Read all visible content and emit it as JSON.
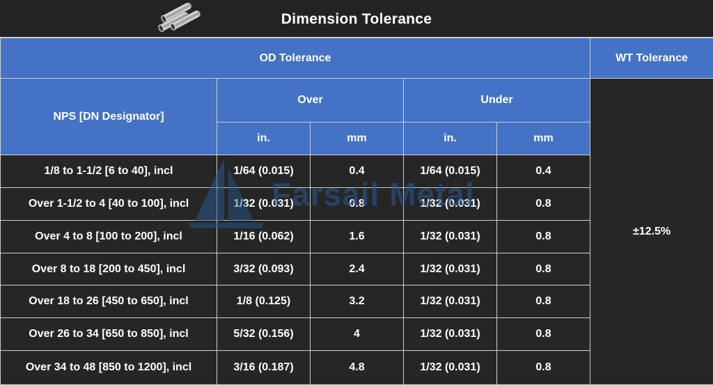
{
  "title": "Dimension Tolerance",
  "logo_icon": "steel-pipes-icon",
  "watermark": {
    "icon": "sail-logo-icon",
    "text": "Farsail Metal"
  },
  "header": {
    "od_tolerance": "OD Tolerance",
    "wt_tolerance": "WT Tolerance",
    "nps": "NPS [DN Designator]",
    "over": "Over",
    "under": "Under",
    "over_in": "in.",
    "over_mm": "mm",
    "under_in": "in.",
    "under_mm": "mm"
  },
  "wt_value": "±12.5%",
  "rows": [
    {
      "nps": "1/8 to 1-1/2 [6 to 40], incl",
      "over_in": "1/64 (0.015)",
      "over_mm": "0.4",
      "under_in": "1/64 (0.015)",
      "under_mm": "0.4"
    },
    {
      "nps": "Over 1-1/2 to 4 [40 to 100], incl",
      "over_in": "1/32 (0.031)",
      "over_mm": "0.8",
      "under_in": "1/32 (0.031)",
      "under_mm": "0.8"
    },
    {
      "nps": "Over 4 to 8 [100 to 200], incl",
      "over_in": "1/16 (0.062)",
      "over_mm": "1.6",
      "under_in": "1/32 (0.031)",
      "under_mm": "0.8"
    },
    {
      "nps": "Over 8 to 18 [200 to 450], incl",
      "over_in": "3/32 (0.093)",
      "over_mm": "2.4",
      "under_in": "1/32 (0.031)",
      "under_mm": "0.8"
    },
    {
      "nps": "Over 18 to 26 [450 to 650], incl",
      "over_in": "1/8 (0.125)",
      "over_mm": "3.2",
      "under_in": "1/32 (0.031)",
      "under_mm": "0.8"
    },
    {
      "nps": "Over 26 to 34 [650 to 850], incl",
      "over_in": "5/32 (0.156)",
      "over_mm": "4",
      "under_in": "1/32 (0.031)",
      "under_mm": "0.8"
    },
    {
      "nps": "Over 34 to 48 [850 to 1200], incl",
      "over_in": "3/16 (0.187)",
      "over_mm": "4.8",
      "under_in": "1/32 (0.031)",
      "under_mm": "0.8"
    }
  ],
  "colors": {
    "header_blue": "#4472c4",
    "body_dark": "#262626",
    "title_bg": "#232323"
  }
}
